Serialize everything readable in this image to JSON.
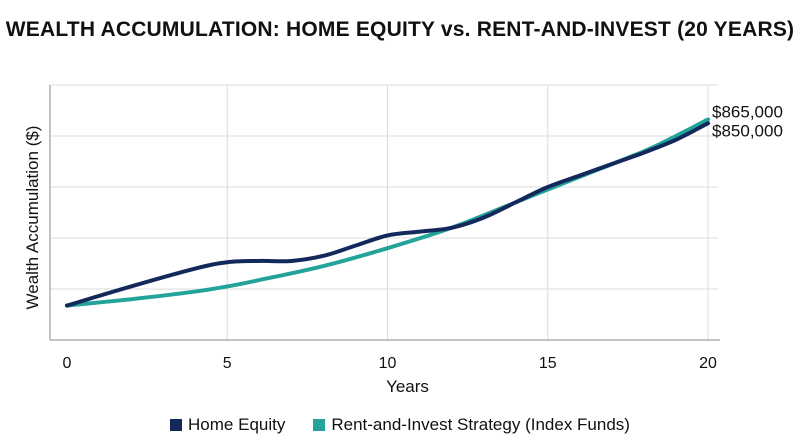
{
  "chart_data": {
    "type": "line",
    "title": "WEALTH ACCUMULATION: HOME EQUITY vs. RENT-AND-INVEST (20 YEARS)",
    "xlabel": "Years",
    "ylabel": "Wealth Accumulation ($)",
    "xlim": [
      0,
      20
    ],
    "ylim": [
      0,
      1000000
    ],
    "xticks": [
      0,
      5,
      10,
      15,
      20
    ],
    "grid": true,
    "legend_position": "bottom",
    "series": [
      {
        "name": "Home Equity",
        "color": "#13295c",
        "x": [
          0,
          2,
          4,
          5,
          6,
          7,
          8,
          9,
          10,
          11,
          12,
          13,
          14,
          15,
          16,
          17,
          18,
          19,
          20
        ],
        "y": [
          135000,
          210000,
          280000,
          305000,
          310000,
          310000,
          330000,
          370000,
          410000,
          425000,
          440000,
          480000,
          540000,
          600000,
          645000,
          690000,
          735000,
          785000,
          850000
        ],
        "end_label": "$850,000"
      },
      {
        "name": "Rent-and-Invest Strategy (Index Funds)",
        "color": "#24a39a",
        "x": [
          0,
          2,
          4,
          5,
          6,
          8,
          10,
          12,
          14,
          15,
          16,
          18,
          19,
          20
        ],
        "y": [
          135000,
          160000,
          190000,
          210000,
          235000,
          290000,
          360000,
          440000,
          540000,
          590000,
          640000,
          740000,
          800000,
          865000
        ],
        "end_label": "$865,000"
      }
    ]
  }
}
